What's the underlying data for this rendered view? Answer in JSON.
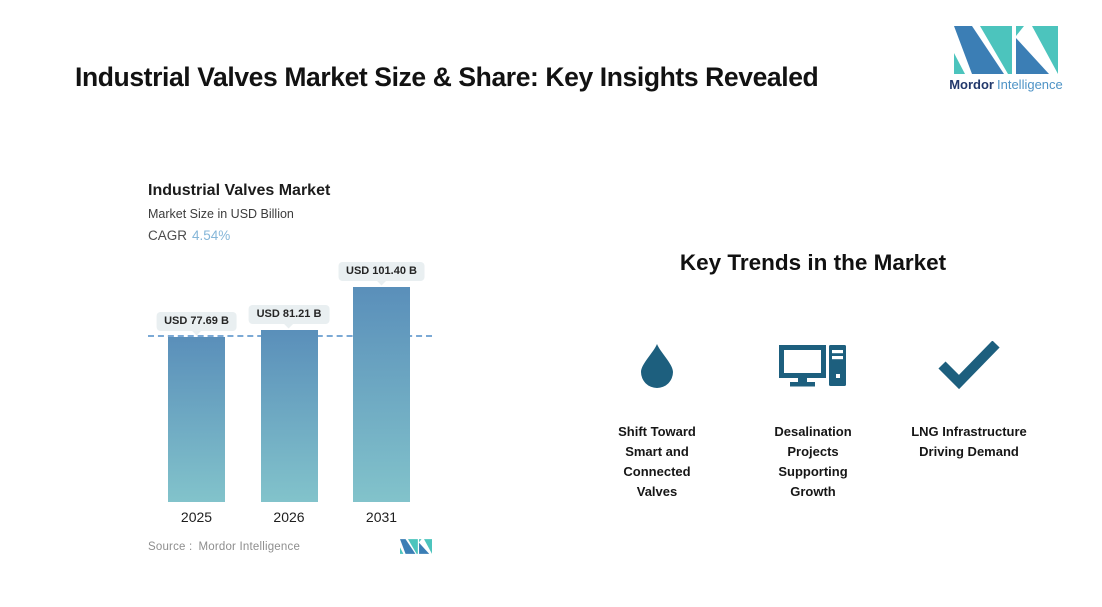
{
  "header": {
    "title": "Industrial Valves Market Size & Share: Key Insights Revealed",
    "brand": {
      "name": "Mordor",
      "suffix": "Intelligence"
    }
  },
  "chart": {
    "title": "Industrial Valves Market",
    "subtitle": "Market Size in USD Billion",
    "cagr_label": "CAGR",
    "cagr_value": "4.54%",
    "source_label": "Source :",
    "source_value": "Mordor Intelligence"
  },
  "chart_data": {
    "type": "bar",
    "title": "Industrial Valves Market",
    "subtitle": "Market Size in USD Billion",
    "cagr_percent": 4.54,
    "categories": [
      "2025",
      "2026",
      "2031"
    ],
    "values": [
      77.69,
      81.21,
      101.4
    ],
    "value_labels": [
      "USD 77.69 B",
      "USD 81.21 B",
      "USD 101.40 B"
    ],
    "unit": "USD Billion",
    "reference_line_value": 77.69,
    "ylim": [
      0,
      110
    ],
    "grid": false,
    "legend": false,
    "bar_gradient_top": "#5a8fba",
    "bar_gradient_bottom": "#82c3cb"
  },
  "trends": {
    "heading": "Key Trends in the Market",
    "items": [
      {
        "icon": "droplet-icon",
        "label": "Shift Toward Smart and Connected Valves"
      },
      {
        "icon": "desktop-computer-icon",
        "label": "Desalination Projects Supporting Growth"
      },
      {
        "icon": "checkmark-icon",
        "label": "LNG Infrastructure Driving Demand"
      }
    ]
  },
  "colors": {
    "logo_teal": "#4cc4bd",
    "logo_blue": "#3b7eb5",
    "brand_name_color": "#21386b",
    "brand_suffix_color": "#4e93c6",
    "trend_icon_color": "#1d5f7e",
    "dashed_line_color": "#7ba9d5",
    "cagr_value_color": "#85b6d8",
    "badge_bg": "#e9eff1"
  }
}
